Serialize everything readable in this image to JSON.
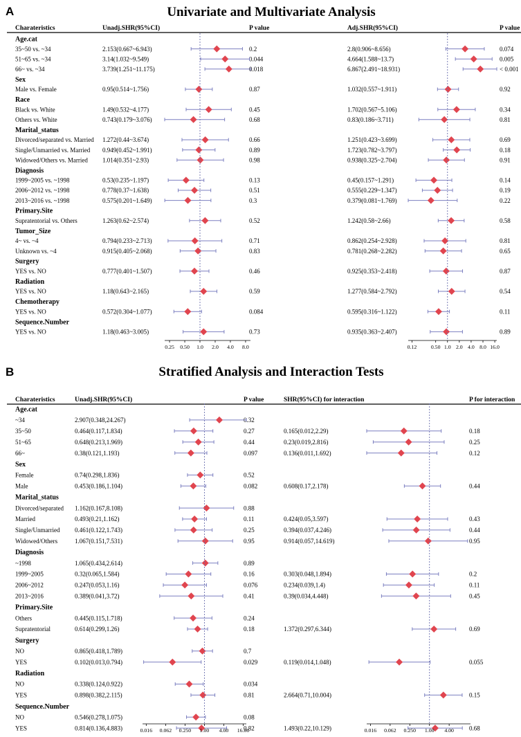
{
  "chart_data": [
    {
      "type": "forest",
      "panel_label": "A",
      "title": "Univariate and Multivariate Analysis",
      "columns": {
        "label": "Charateristics",
        "est1": "Unadj.SHR(95%CI)",
        "p1": "P value",
        "est2": "Adj.SHR(95%CI)",
        "p2": "P value"
      },
      "x_scale": "log2",
      "plot1_ticks": [
        "0.25",
        "0.50",
        "1.0",
        "2.0",
        "4.0",
        "8.0"
      ],
      "plot1_tick_values": [
        0.25,
        0.5,
        1,
        2,
        4,
        8
      ],
      "plot1_xlim": [
        0.2,
        10
      ],
      "plot2_ticks": [
        "0.12",
        "0.50",
        "1.0",
        "2.0",
        "4.0",
        "8.0",
        "16.0"
      ],
      "plot2_tick_values": [
        0.125,
        0.5,
        1,
        2,
        4,
        8,
        16
      ],
      "plot2_xlim": [
        0.1,
        18
      ],
      "reference_line": 1,
      "rows": [
        {
          "group": "Age.cat"
        },
        {
          "label": "35~50 vs. ~34",
          "est1": "2.153(0.667~6.943)",
          "p1": "0.2",
          "hr1": 2.153,
          "lo1": 0.667,
          "hi1": 6.943,
          "est2": "2.8(0.906~8.656)",
          "p2": "0.074",
          "hr2": 2.8,
          "lo2": 0.906,
          "hi2": 8.656
        },
        {
          "label": "51~65 vs. ~34",
          "est1": "3.14(1.032~9.549)",
          "p1": "0.044",
          "hr1": 3.14,
          "lo1": 1.032,
          "hi1": 9.549,
          "est2": "4.664(1.588~13.7)",
          "p2": "0.005",
          "hr2": 4.664,
          "lo2": 1.588,
          "hi2": 13.7
        },
        {
          "label": "66~ vs. ~34",
          "est1": "3.739(1.251~11.175)",
          "p1": "0.018",
          "hr1": 3.739,
          "lo1": 1.251,
          "hi1": 11.175,
          "est2": "6.867(2.491~18.931)",
          "p2": "< 0.001",
          "hr2": 6.867,
          "lo2": 2.491,
          "hi2": 18.931
        },
        {
          "group": "Sex"
        },
        {
          "label": "Male vs. Female",
          "est1": "0.95(0.514~1.756)",
          "p1": "0.87",
          "hr1": 0.95,
          "lo1": 0.514,
          "hi1": 1.756,
          "est2": "1.032(0.557~1.911)",
          "p2": "0.92",
          "hr2": 1.032,
          "lo2": 0.557,
          "hi2": 1.911
        },
        {
          "group": "Race"
        },
        {
          "label": "Black vs. White",
          "est1": "1.49(0.532~4.177)",
          "p1": "0.45",
          "hr1": 1.49,
          "lo1": 0.532,
          "hi1": 4.177,
          "est2": "1.702(0.567~5.106)",
          "p2": "0.34",
          "hr2": 1.702,
          "lo2": 0.567,
          "hi2": 5.106
        },
        {
          "label": "Others vs. White",
          "est1": "0.743(0.179~3.076)",
          "p1": "0.68",
          "hr1": 0.743,
          "lo1": 0.179,
          "hi1": 3.076,
          "est2": "0.83(0.186~3.711)",
          "p2": "0.81",
          "hr2": 0.83,
          "lo2": 0.186,
          "hi2": 3.711
        },
        {
          "group": "Marital_status"
        },
        {
          "label": "Divorced/separated vs. Married",
          "est1": "1.272(0.44~3.674)",
          "p1": "0.66",
          "hr1": 1.272,
          "lo1": 0.44,
          "hi1": 3.674,
          "est2": "1.251(0.423~3.699)",
          "p2": "0.69",
          "hr2": 1.251,
          "lo2": 0.423,
          "hi2": 3.699
        },
        {
          "label": "Single/Unmarried vs. Married",
          "est1": "0.949(0.452~1.991)",
          "p1": "0.89",
          "hr1": 0.949,
          "lo1": 0.452,
          "hi1": 1.991,
          "est2": "1.723(0.782~3.797)",
          "p2": "0.18",
          "hr2": 1.723,
          "lo2": 0.782,
          "hi2": 3.797
        },
        {
          "label": "Widowed/Others vs. Married",
          "est1": "1.014(0.351~2.93)",
          "p1": "0.98",
          "hr1": 1.014,
          "lo1": 0.351,
          "hi1": 2.93,
          "est2": "0.938(0.325~2.704)",
          "p2": "0.91",
          "hr2": 0.938,
          "lo2": 0.325,
          "hi2": 2.704
        },
        {
          "group": "Diagnosis"
        },
        {
          "label": "1999~2005 vs. ~1998",
          "est1": "0.53(0.235~1.197)",
          "p1": "0.13",
          "hr1": 0.53,
          "lo1": 0.235,
          "hi1": 1.197,
          "est2": "0.45(0.157~1.291)",
          "p2": "0.14",
          "hr2": 0.45,
          "lo2": 0.157,
          "hi2": 1.291
        },
        {
          "label": "2006~2012 vs. ~1998",
          "est1": "0.778(0.37~1.638)",
          "p1": "0.51",
          "hr1": 0.778,
          "lo1": 0.37,
          "hi1": 1.638,
          "est2": "0.555(0.229~1.347)",
          "p2": "0.19",
          "hr2": 0.555,
          "lo2": 0.229,
          "hi2": 1.347
        },
        {
          "label": "2013~2016 vs. ~1998",
          "est1": "0.575(0.201~1.649)",
          "p1": "0.3",
          "hr1": 0.575,
          "lo1": 0.201,
          "hi1": 1.649,
          "est2": "0.379(0.081~1.769)",
          "p2": "0.22",
          "hr2": 0.379,
          "lo2": 0.081,
          "hi2": 1.769
        },
        {
          "group": "Primary.Site"
        },
        {
          "label": "Supratentorial vs. Others",
          "est1": "1.263(0.62~2.574)",
          "p1": "0.52",
          "hr1": 1.263,
          "lo1": 0.62,
          "hi1": 2.574,
          "est2": "1.242(0.58~2.66)",
          "p2": "0.58",
          "hr2": 1.242,
          "lo2": 0.58,
          "hi2": 2.66
        },
        {
          "group": "Tumor_Size"
        },
        {
          "label": "4~ vs. ~4",
          "est1": "0.794(0.233~2.713)",
          "p1": "0.71",
          "hr1": 0.794,
          "lo1": 0.233,
          "hi1": 2.713,
          "est2": "0.862(0.254~2.928)",
          "p2": "0.81",
          "hr2": 0.862,
          "lo2": 0.254,
          "hi2": 2.928
        },
        {
          "label": "Unknown vs. ~4",
          "est1": "0.915(0.405~2.068)",
          "p1": "0.83",
          "hr1": 0.915,
          "lo1": 0.405,
          "hi1": 2.068,
          "est2": "0.781(0.268~2.282)",
          "p2": "0.65",
          "hr2": 0.781,
          "lo2": 0.268,
          "hi2": 2.282
        },
        {
          "group": "Surgery"
        },
        {
          "label": "YES vs. NO",
          "est1": "0.777(0.401~1.507)",
          "p1": "0.46",
          "hr1": 0.777,
          "lo1": 0.401,
          "hi1": 1.507,
          "est2": "0.925(0.353~2.418)",
          "p2": "0.87",
          "hr2": 0.925,
          "lo2": 0.353,
          "hi2": 2.418
        },
        {
          "group": "Radiation"
        },
        {
          "label": "YES vs. NO",
          "est1": "1.18(0.643~2.165)",
          "p1": "0.59",
          "hr1": 1.18,
          "lo1": 0.643,
          "hi1": 2.165,
          "est2": "1.277(0.584~2.792)",
          "p2": "0.54",
          "hr2": 1.277,
          "lo2": 0.584,
          "hi2": 2.792
        },
        {
          "group": "Chemotherapy"
        },
        {
          "label": "YES vs. NO",
          "est1": "0.572(0.304~1.077)",
          "p1": "0.084",
          "hr1": 0.572,
          "lo1": 0.304,
          "hi1": 1.077,
          "est2": "0.595(0.316~1.122)",
          "p2": "0.11",
          "hr2": 0.595,
          "lo2": 0.316,
          "hi2": 1.122
        },
        {
          "group": "Sequence.Number"
        },
        {
          "label": "YES vs. NO",
          "est1": "1.18(0.463~3.005)",
          "p1": "0.73",
          "hr1": 1.18,
          "lo1": 0.463,
          "hi1": 3.005,
          "est2": "0.935(0.363~2.407)",
          "p2": "0.89",
          "hr2": 0.935,
          "lo2": 0.363,
          "hi2": 2.407
        }
      ]
    },
    {
      "type": "forest",
      "panel_label": "B",
      "title": "Stratified Analysis and Interaction Tests",
      "columns": {
        "label": "Charateristics",
        "est1": "Unadj.SHR(95%CI)",
        "p1": "P value",
        "est2": "SHR(95%CI) for interaction",
        "p2": "P for interaction"
      },
      "x_scale": "log2",
      "plot1_ticks": [
        "0.016",
        "0.062",
        "0.250",
        "1.00",
        "4.00",
        "16.00"
      ],
      "plot1_tick_values": [
        0.015625,
        0.0625,
        0.25,
        1,
        4,
        16
      ],
      "plot1_xlim": [
        0.012,
        20
      ],
      "plot2_ticks": [
        "0.016",
        "0.062",
        "0.250",
        "1.00",
        "4.00"
      ],
      "plot2_tick_values": [
        0.015625,
        0.0625,
        0.25,
        1,
        4
      ],
      "plot2_xlim": [
        0.012,
        18
      ],
      "reference_line": 1,
      "rows": [
        {
          "group": "Age.cat"
        },
        {
          "label": "~34",
          "est1": "2.907(0.348,24.267)",
          "p1": "0.32",
          "hr1": 2.907,
          "lo1": 0.348,
          "hi1": 24.267
        },
        {
          "label": "35~50",
          "est1": "0.464(0.117,1.834)",
          "p1": "0.27",
          "hr1": 0.464,
          "lo1": 0.117,
          "hi1": 1.834,
          "est2": "0.165(0.012,2.29)",
          "p2": "0.18",
          "hr2": 0.165,
          "lo2": 0.012,
          "hi2": 2.29
        },
        {
          "label": "51~65",
          "est1": "0.648(0.213,1.969)",
          "p1": "0.44",
          "hr1": 0.648,
          "lo1": 0.213,
          "hi1": 1.969,
          "est2": "0.23(0.019,2.816)",
          "p2": "0.25",
          "hr2": 0.23,
          "lo2": 0.019,
          "hi2": 2.816
        },
        {
          "label": "66~",
          "est1": "0.38(0.121,1.193)",
          "p1": "0.097",
          "hr1": 0.38,
          "lo1": 0.121,
          "hi1": 1.193,
          "est2": "0.136(0.011,1.692)",
          "p2": "0.12",
          "hr2": 0.136,
          "lo2": 0.011,
          "hi2": 1.692
        },
        {
          "group": "Sex"
        },
        {
          "label": "Female",
          "est1": "0.74(0.298,1.836)",
          "p1": "0.52",
          "hr1": 0.74,
          "lo1": 0.298,
          "hi1": 1.836
        },
        {
          "label": "Male",
          "est1": "0.453(0.186,1.104)",
          "p1": "0.082",
          "hr1": 0.453,
          "lo1": 0.186,
          "hi1": 1.104,
          "est2": "0.608(0.17,2.178)",
          "p2": "0.44",
          "hr2": 0.608,
          "lo2": 0.17,
          "hi2": 2.178
        },
        {
          "group": "Marital_status"
        },
        {
          "label": "Divorced/separated",
          "est1": "1.162(0.167,8.108)",
          "p1": "0.88",
          "hr1": 1.162,
          "lo1": 0.167,
          "hi1": 8.108
        },
        {
          "label": "Married",
          "est1": "0.493(0.21,1.162)",
          "p1": "0.11",
          "hr1": 0.493,
          "lo1": 0.21,
          "hi1": 1.162,
          "est2": "0.424(0.05,3.597)",
          "p2": "0.43",
          "hr2": 0.424,
          "lo2": 0.05,
          "hi2": 3.597
        },
        {
          "label": "Single/Unmarried",
          "est1": "0.461(0.122,1.743)",
          "p1": "0.25",
          "hr1": 0.461,
          "lo1": 0.122,
          "hi1": 1.743,
          "est2": "0.394(0.037,4.246)",
          "p2": "0.44",
          "hr2": 0.394,
          "lo2": 0.037,
          "hi2": 4.246
        },
        {
          "label": "Widowed/Others",
          "est1": "1.067(0.151,7.531)",
          "p1": "0.95",
          "hr1": 1.067,
          "lo1": 0.151,
          "hi1": 7.531,
          "est2": "0.914(0.057,14.619)",
          "p2": "0.95",
          "hr2": 0.914,
          "lo2": 0.057,
          "hi2": 14.619
        },
        {
          "group": "Diagnosis"
        },
        {
          "label": "~1998",
          "est1": "1.065(0.434,2.614)",
          "p1": "0.89",
          "hr1": 1.065,
          "lo1": 0.434,
          "hi1": 2.614
        },
        {
          "label": "1999~2005",
          "est1": "0.32(0.065,1.584)",
          "p1": "0.16",
          "hr1": 0.32,
          "lo1": 0.065,
          "hi1": 1.584,
          "est2": "0.303(0.048,1.894)",
          "p2": "0.2",
          "hr2": 0.303,
          "lo2": 0.048,
          "hi2": 1.894
        },
        {
          "label": "2006~2012",
          "est1": "0.247(0.053,1.16)",
          "p1": "0.076",
          "hr1": 0.247,
          "lo1": 0.053,
          "hi1": 1.16,
          "est2": "0.234(0.039,1.4)",
          "p2": "0.11",
          "hr2": 0.234,
          "lo2": 0.039,
          "hi2": 1.4
        },
        {
          "label": "2013~2016",
          "est1": "0.389(0.041,3.72)",
          "p1": "0.41",
          "hr1": 0.389,
          "lo1": 0.041,
          "hi1": 3.72,
          "est2": "0.39(0.034,4.448)",
          "p2": "0.45",
          "hr2": 0.39,
          "lo2": 0.034,
          "hi2": 4.448
        },
        {
          "group": "Primary.Site"
        },
        {
          "label": "Others",
          "est1": "0.445(0.115,1.718)",
          "p1": "0.24",
          "hr1": 0.445,
          "lo1": 0.115,
          "hi1": 1.718
        },
        {
          "label": "Supratentorial",
          "est1": "0.614(0.299,1.26)",
          "p1": "0.18",
          "hr1": 0.614,
          "lo1": 0.299,
          "hi1": 1.26,
          "est2": "1.372(0.297,6.344)",
          "p2": "0.69",
          "hr2": 1.372,
          "lo2": 0.297,
          "hi2": 6.344
        },
        {
          "group": "Surgery"
        },
        {
          "label": "NO",
          "est1": "0.865(0.418,1.789)",
          "p1": "0.7",
          "hr1": 0.865,
          "lo1": 0.418,
          "hi1": 1.789
        },
        {
          "label": "YES",
          "est1": "0.102(0.013,0.794)",
          "p1": "0.029",
          "hr1": 0.102,
          "lo1": 0.013,
          "hi1": 0.794,
          "est2": "0.119(0.014,1.048)",
          "p2": "0.055",
          "hr2": 0.119,
          "lo2": 0.014,
          "hi2": 1.048
        },
        {
          "group": "Radiation"
        },
        {
          "label": "NO",
          "est1": "0.338(0.124,0.922)",
          "p1": "0.034",
          "hr1": 0.338,
          "lo1": 0.124,
          "hi1": 0.922
        },
        {
          "label": "YES",
          "est1": "0.898(0.382,2.115)",
          "p1": "0.81",
          "hr1": 0.898,
          "lo1": 0.382,
          "hi1": 2.115,
          "est2": "2.664(0.71,10.004)",
          "p2": "0.15",
          "hr2": 2.664,
          "lo2": 0.71,
          "hi2": 10.004
        },
        {
          "group": "Sequence.Number"
        },
        {
          "label": "NO",
          "est1": "0.546(0.278,1.075)",
          "p1": "0.08",
          "hr1": 0.546,
          "lo1": 0.278,
          "hi1": 1.075
        },
        {
          "label": "YES",
          "est1": "0.814(0.136,4.883)",
          "p1": "0.82",
          "hr1": 0.814,
          "lo1": 0.136,
          "hi1": 4.883,
          "est2": "1.493(0.22,10.129)",
          "p2": "0.68",
          "hr2": 1.493,
          "lo2": 0.22,
          "hi2": 10.129
        }
      ]
    }
  ],
  "colors": {
    "marker": "#e0454f",
    "ci_line": "#7b7fc0",
    "reference_line": "#6a6fae",
    "text": "#000000"
  }
}
